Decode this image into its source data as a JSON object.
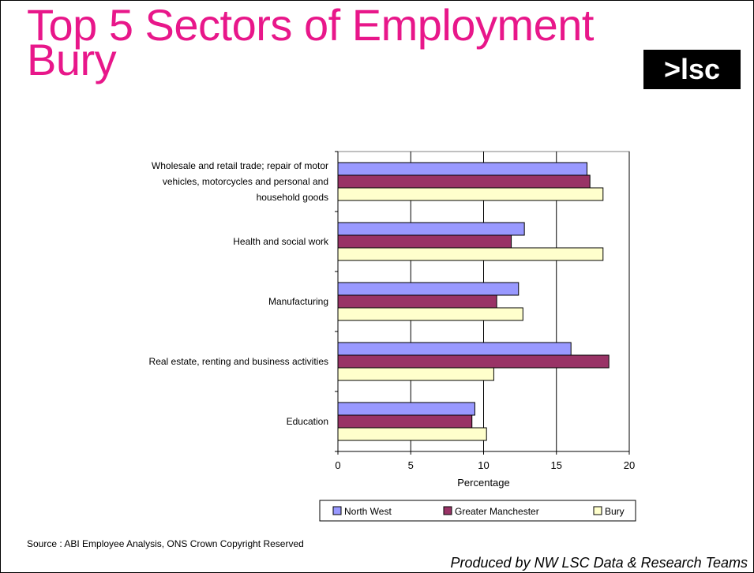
{
  "slide": {
    "title_line1": "Top 5 Sectors of Employment",
    "title_line2": "Bury",
    "logo_text": ">lsc",
    "source": "Source : ABI Employee Analysis, ONS Crown Copyright Reserved",
    "credit": "Produced by NW LSC Data & Research Teams",
    "title_color": "#e8178a"
  },
  "chart_data": {
    "type": "bar",
    "orientation": "horizontal",
    "categories": [
      "Wholesale and retail trade; repair of motor vehicles, motorcycles and personal and household goods",
      "Health and social work",
      "Manufacturing",
      "Real estate, renting and business activities",
      "Education"
    ],
    "series": [
      {
        "name": "North West",
        "color": "#9999ff",
        "values": [
          17.1,
          12.8,
          12.4,
          16.0,
          9.4
        ]
      },
      {
        "name": "Greater Manchester",
        "color": "#993366",
        "values": [
          17.3,
          11.9,
          10.9,
          18.6,
          9.2
        ]
      },
      {
        "name": "Bury",
        "color": "#ffffcc",
        "values": [
          18.2,
          18.2,
          12.7,
          10.7,
          10.2
        ]
      }
    ],
    "xlabel": "Percentage",
    "xlim": [
      0,
      20
    ],
    "xticks": [
      0,
      5,
      10,
      15,
      20
    ],
    "grid": true,
    "legend": "bottom"
  }
}
